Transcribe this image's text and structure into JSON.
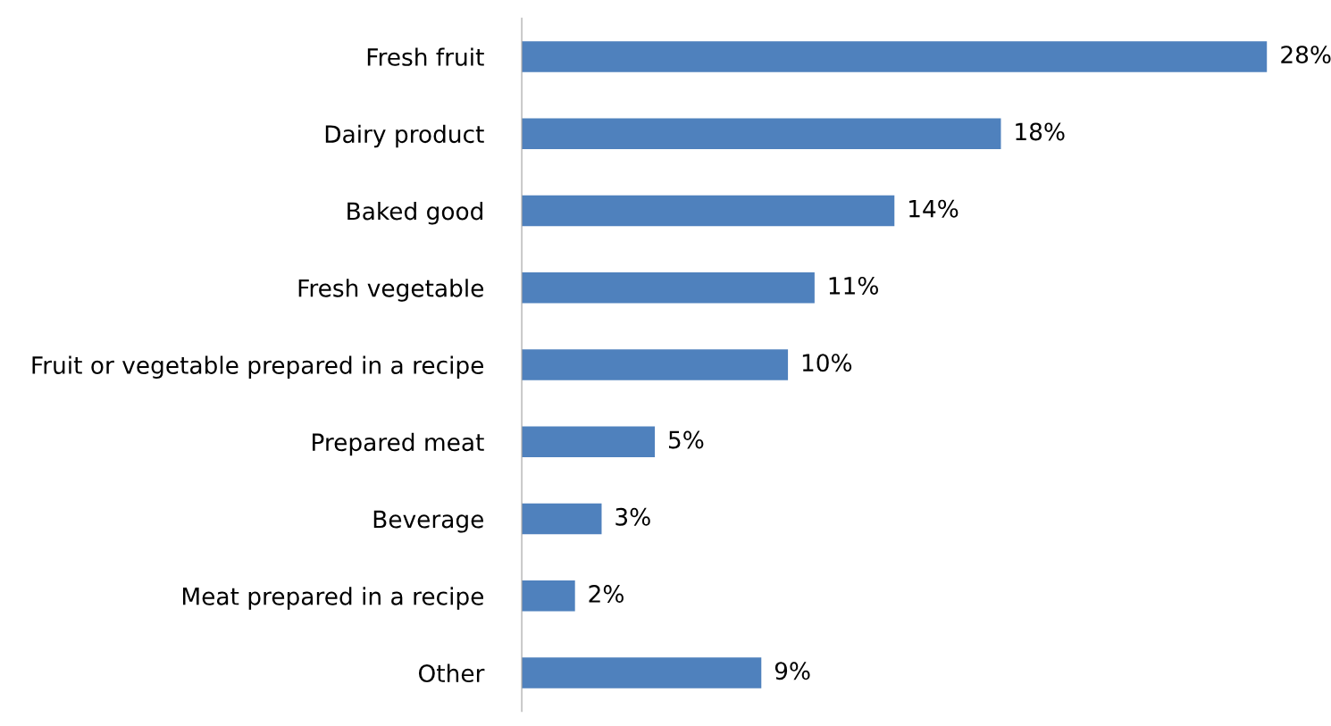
{
  "chart_data": {
    "type": "bar",
    "orientation": "horizontal",
    "categories": [
      "Fresh fruit",
      "Dairy product",
      "Baked good",
      "Fresh vegetable",
      "Fruit or vegetable prepared in a recipe",
      "Prepared meat",
      "Beverage",
      "Meat prepared in a recipe",
      "Other"
    ],
    "values": [
      28,
      18,
      14,
      11,
      10,
      5,
      3,
      2,
      9
    ],
    "value_labels": [
      "28%",
      "18%",
      "14%",
      "11%",
      "10%",
      "5%",
      "3%",
      "2%",
      "9%"
    ],
    "color": "#4f81bd",
    "tick_labels": "y",
    "grid": false,
    "legend": false
  }
}
